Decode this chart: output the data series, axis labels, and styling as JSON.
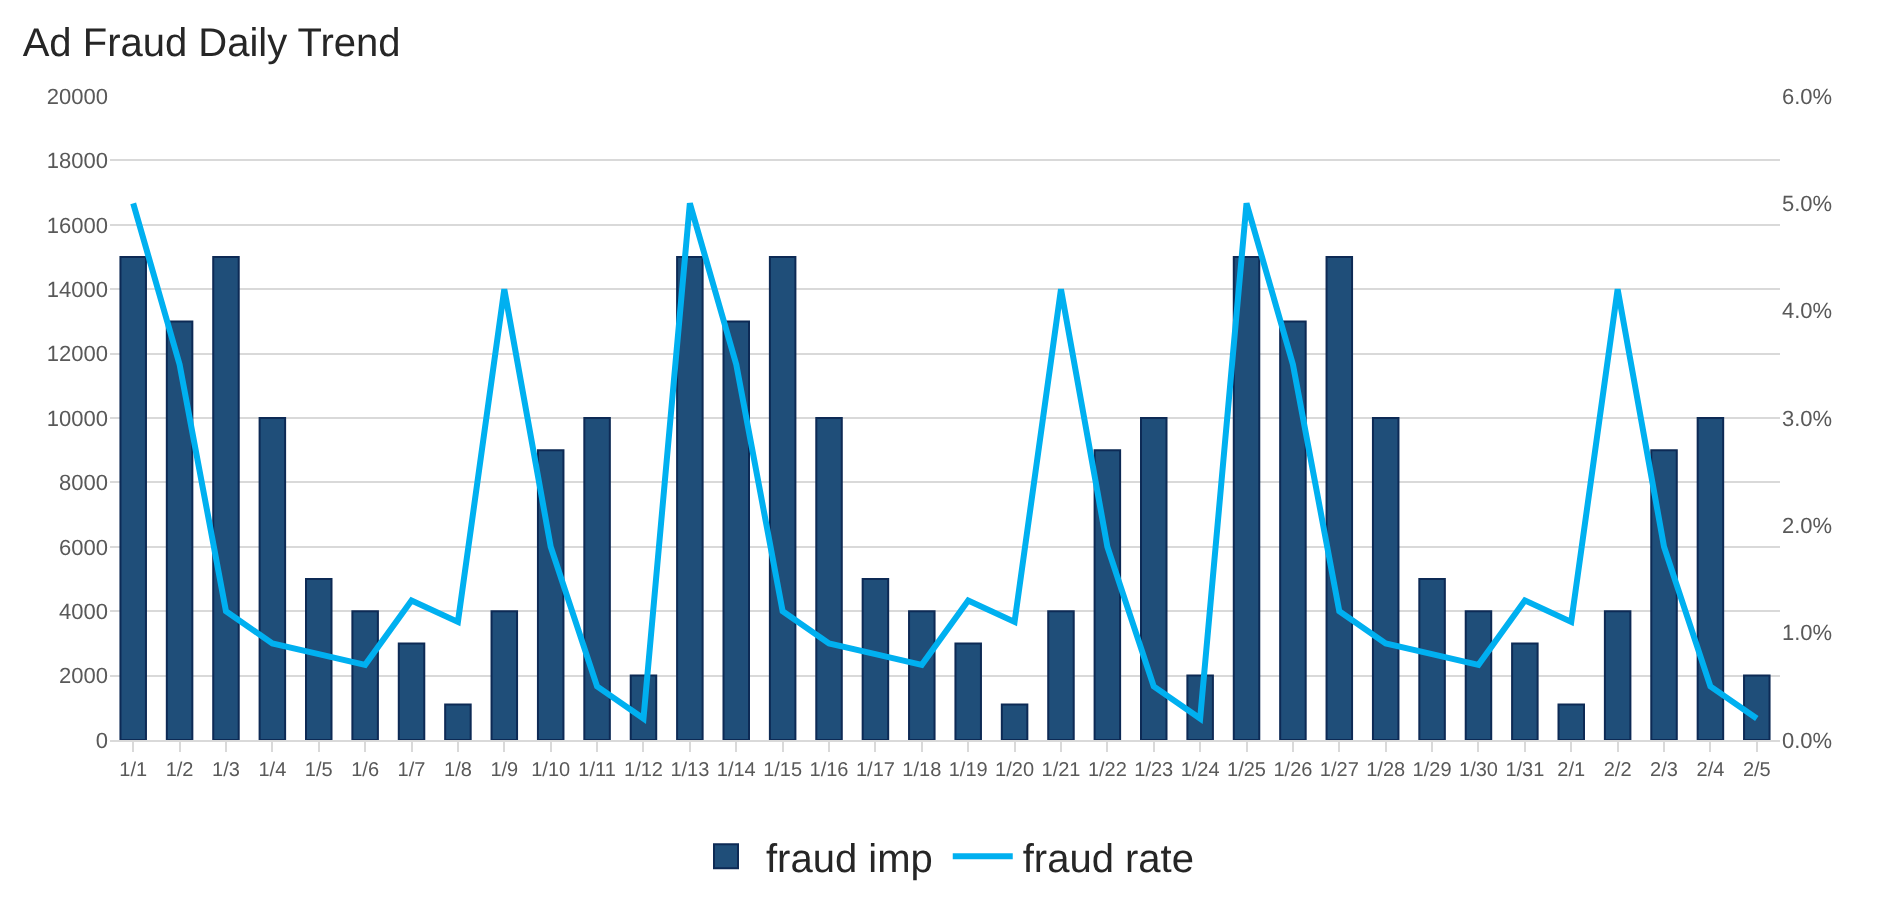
{
  "chart_data": {
    "type": "bar",
    "title": "Ad Fraud Daily Trend",
    "categories": [
      "1/1",
      "1/2",
      "1/3",
      "1/4",
      "1/5",
      "1/6",
      "1/7",
      "1/8",
      "1/9",
      "1/10",
      "1/11",
      "1/12",
      "1/13",
      "1/14",
      "1/15",
      "1/16",
      "1/17",
      "1/18",
      "1/19",
      "1/20",
      "1/21",
      "1/22",
      "1/23",
      "1/24",
      "1/25",
      "1/26",
      "1/27",
      "1/28",
      "1/29",
      "1/30",
      "1/31",
      "2/1",
      "2/2",
      "2/3",
      "2/4",
      "2/5"
    ],
    "series": [
      {
        "name": "fraud imp",
        "color": "#1f4e79",
        "values": [
          15000,
          13000,
          15000,
          10000,
          5000,
          4000,
          3000,
          1100,
          4000,
          9000,
          10000,
          2000,
          15000,
          13000,
          15000,
          10000,
          5000,
          4000,
          3000,
          1100,
          4000,
          9000,
          10000,
          2000,
          15000,
          13000,
          15000,
          10000,
          5000,
          4000,
          3000,
          1100,
          4000,
          9000,
          10000,
          2000
        ]
      },
      {
        "name": "fraud rate",
        "type": "line",
        "axis": "y2",
        "color": "#00b0f0",
        "values": [
          5.0,
          3.5,
          1.2,
          0.9,
          0.8,
          0.7,
          1.3,
          1.1,
          4.2,
          1.8,
          0.5,
          0.2,
          5.0,
          3.5,
          1.2,
          0.9,
          0.8,
          0.7,
          1.3,
          1.1,
          4.2,
          1.8,
          0.5,
          0.2,
          5.0,
          3.5,
          1.2,
          0.9,
          0.8,
          0.7,
          1.3,
          1.1,
          4.2,
          1.8,
          0.5,
          0.2
        ]
      }
    ],
    "ylim": [
      0,
      20000
    ],
    "yticks": [
      0,
      2000,
      4000,
      6000,
      8000,
      10000,
      12000,
      14000,
      16000,
      18000,
      20000
    ],
    "y2lim": [
      0,
      6
    ],
    "y2ticks": [
      {
        "value": 0,
        "label": "0.0%"
      },
      {
        "value": 1,
        "label": "1.0%"
      },
      {
        "value": 2,
        "label": "2.0%"
      },
      {
        "value": 3,
        "label": "3.0%"
      },
      {
        "value": 4,
        "label": "4.0%"
      },
      {
        "value": 5,
        "label": "5.0%"
      },
      {
        "value": 6,
        "label": "6.0%"
      }
    ],
    "grid": "y",
    "legend": "bottom",
    "marker": "none",
    "line_style": "solid"
  }
}
